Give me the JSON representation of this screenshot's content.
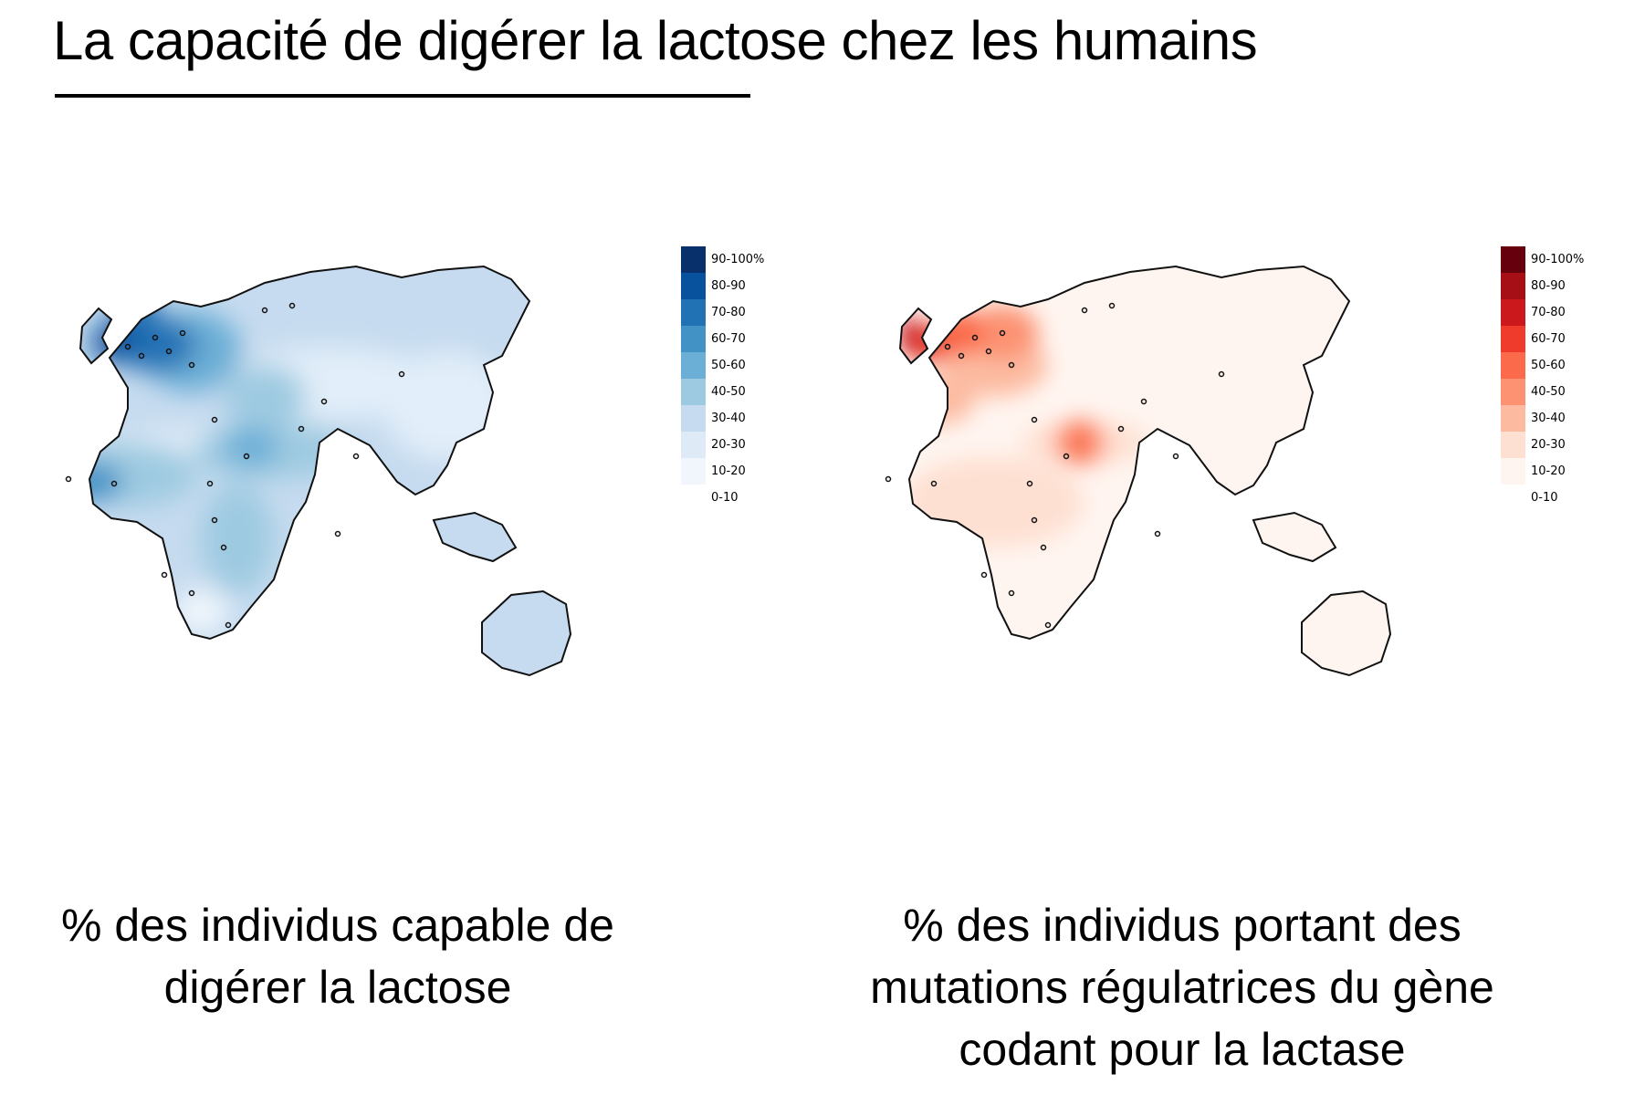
{
  "title": "La capacité de digérer la lactose chez les humains",
  "maps": [
    {
      "id": "lactose-digestion",
      "palette": "blue",
      "legend": [
        {
          "label": "90-100%",
          "color": "#08306b"
        },
        {
          "label": "80-90",
          "color": "#08519c"
        },
        {
          "label": "70-80",
          "color": "#2171b5"
        },
        {
          "label": "60-70",
          "color": "#4292c6"
        },
        {
          "label": "50-60",
          "color": "#6baed6"
        },
        {
          "label": "40-50",
          "color": "#9ecae1"
        },
        {
          "label": "30-40",
          "color": "#c6dbef"
        },
        {
          "label": "20-30",
          "color": "#deebf7"
        },
        {
          "label": "10-20",
          "color": "#f0f6fc"
        },
        {
          "label": "0-10",
          "color": "#ffffff"
        }
      ],
      "caption_lines": [
        "% des individus capable de",
        "digérer la lactose"
      ]
    },
    {
      "id": "lactase-mutations",
      "palette": "red",
      "legend": [
        {
          "label": "90-100%",
          "color": "#67000d"
        },
        {
          "label": "80-90",
          "color": "#a50f15"
        },
        {
          "label": "70-80",
          "color": "#cb181d"
        },
        {
          "label": "60-70",
          "color": "#ef3b2c"
        },
        {
          "label": "50-60",
          "color": "#fb6a4a"
        },
        {
          "label": "40-50",
          "color": "#fc9272"
        },
        {
          "label": "30-40",
          "color": "#fcbba1"
        },
        {
          "label": "20-30",
          "color": "#fee0d2"
        },
        {
          "label": "10-20",
          "color": "#fff5f0"
        },
        {
          "label": "0-10",
          "color": "#ffffff"
        }
      ],
      "caption_lines": [
        "% des individus portant des",
        "mutations régulatrices du gène",
        "codant pour la lactase"
      ]
    }
  ]
}
